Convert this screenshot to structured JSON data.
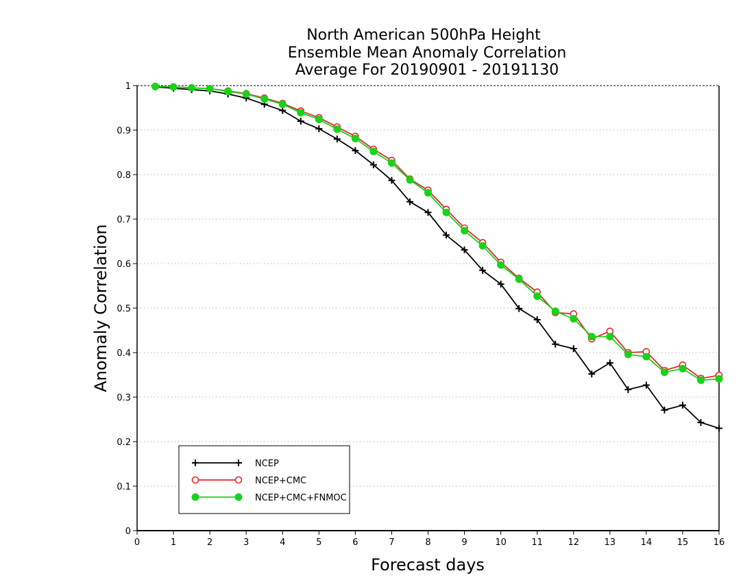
{
  "chart_data": {
    "type": "line",
    "title_lines": [
      "North American 500hPa Height",
      "Ensemble Mean Anomaly Correlation",
      "Average For 20190901 - 20191130"
    ],
    "xlabel": "Forecast days",
    "ylabel": "Anomaly Correlation",
    "xlim": [
      0,
      16
    ],
    "ylim": [
      0,
      1
    ],
    "x_ticks": [
      0,
      1,
      2,
      3,
      4,
      5,
      6,
      7,
      8,
      9,
      10,
      11,
      12,
      13,
      14,
      15,
      16
    ],
    "y_ticks": [
      0,
      0.1,
      0.2,
      0.3,
      0.4,
      0.5,
      0.6,
      0.7,
      0.8,
      0.9,
      1
    ],
    "y_tick_labels": [
      "0",
      "0.1",
      "0.2",
      "0.3",
      "0.4",
      "0.5",
      "0.6",
      "0.7",
      "0.8",
      "0.9",
      "1"
    ],
    "grid": "dotted horizontal",
    "legend_position": "bottom-left",
    "x": [
      0.5,
      1,
      1.5,
      2,
      2.5,
      3,
      3.5,
      4,
      4.5,
      5,
      5.5,
      6,
      6.5,
      7,
      7.5,
      8,
      8.5,
      9,
      9.5,
      10,
      10.5,
      11,
      11.5,
      12,
      12.5,
      13,
      13.5,
      14,
      14.5,
      15,
      15.5,
      16
    ],
    "series": [
      {
        "name": "NCEP",
        "color": "#000000",
        "marker": "plus",
        "values": [
          0.997,
          0.994,
          0.991,
          0.988,
          0.981,
          0.972,
          0.958,
          0.944,
          0.92,
          0.903,
          0.88,
          0.854,
          0.822,
          0.787,
          0.739,
          0.715,
          0.664,
          0.631,
          0.585,
          0.554,
          0.499,
          0.474,
          0.419,
          0.409,
          0.352,
          0.377,
          0.317,
          0.327,
          0.271,
          0.282,
          0.243,
          0.23
        ]
      },
      {
        "name": "NCEP+CMC",
        "color": "#e0282d",
        "marker": "open-circle",
        "values": [
          0.998,
          0.997,
          0.995,
          0.993,
          0.988,
          0.982,
          0.972,
          0.96,
          0.943,
          0.928,
          0.907,
          0.886,
          0.857,
          0.832,
          0.79,
          0.765,
          0.722,
          0.68,
          0.647,
          0.603,
          0.567,
          0.536,
          0.49,
          0.487,
          0.431,
          0.448,
          0.4,
          0.402,
          0.36,
          0.372,
          0.342,
          0.349
        ]
      },
      {
        "name": "NCEP+CMC+FNMOC",
        "color": "#19d219",
        "marker": "filled-circle",
        "values": [
          0.998,
          0.997,
          0.995,
          0.993,
          0.987,
          0.981,
          0.97,
          0.958,
          0.939,
          0.924,
          0.902,
          0.881,
          0.852,
          0.826,
          0.788,
          0.759,
          0.715,
          0.674,
          0.64,
          0.597,
          0.565,
          0.527,
          0.493,
          0.476,
          0.436,
          0.436,
          0.396,
          0.391,
          0.356,
          0.364,
          0.338,
          0.341
        ]
      }
    ]
  }
}
